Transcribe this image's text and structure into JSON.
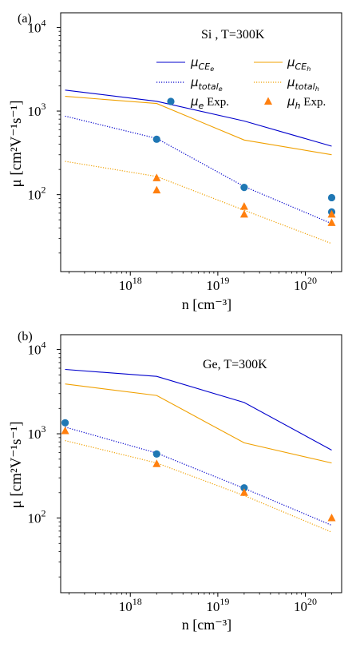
{
  "chart_data": [
    {
      "type": "line",
      "panel_label": "(a)",
      "annotation": "Si , T=300K",
      "xlabel": "n [cm⁻³]",
      "ylabel": "μ [cm²V⁻¹s⁻¹]",
      "x_scale": "log",
      "y_scale": "log",
      "xlim": [
        1.6e+17,
        2.6e+20
      ],
      "ylim": [
        12,
        15000
      ],
      "x_ticks": [
        {
          "value": 1e+18,
          "base": "10",
          "exp": "18"
        },
        {
          "value": 1e+19,
          "base": "10",
          "exp": "19"
        },
        {
          "value": 1e+20,
          "base": "10",
          "exp": "20"
        }
      ],
      "y_ticks": [
        {
          "value": 100,
          "base": "10",
          "exp": "2"
        },
        {
          "value": 1000,
          "base": "10",
          "exp": "3"
        },
        {
          "value": 10000,
          "base": "10",
          "exp": "4"
        }
      ],
      "legend_position": "top-right",
      "series": [
        {
          "name": "μ_CEe",
          "kind": "line",
          "color": "#0000cc",
          "style": "solid",
          "x": [
            1.8e+17,
            2e+18,
            2e+19,
            2e+20
          ],
          "y": [
            1780,
            1310,
            760,
            380
          ]
        },
        {
          "name": "μ_CEh",
          "kind": "line",
          "color": "#f0a000",
          "style": "solid",
          "x": [
            1.8e+17,
            2e+18,
            2e+19,
            2e+20
          ],
          "y": [
            1500,
            1230,
            450,
            300
          ]
        },
        {
          "name": "μ_totale",
          "kind": "line",
          "color": "#0000cc",
          "style": "dotted",
          "x": [
            1.8e+17,
            2e+18,
            2e+19,
            2e+20
          ],
          "y": [
            870,
            470,
            125,
            45
          ]
        },
        {
          "name": "μ_totalh",
          "kind": "line",
          "color": "#f0a000",
          "style": "dotted",
          "x": [
            1.8e+17,
            2e+18,
            2e+19,
            2e+20
          ],
          "y": [
            250,
            165,
            65,
            26
          ]
        },
        {
          "name": "μe Exp.",
          "kind": "marker",
          "marker": "circle",
          "color": "#1f77b4",
          "x": [
            2e+18,
            2e+19,
            2e+20,
            2e+20
          ],
          "y": [
            460,
            122,
            92,
            62
          ]
        },
        {
          "name": "μh Exp.",
          "kind": "marker",
          "marker": "triangle",
          "color": "#ff7f0e",
          "x": [
            2e+18,
            2e+18,
            2e+19,
            2e+19,
            2e+20,
            2e+20
          ],
          "y": [
            158,
            113,
            72,
            58,
            58,
            46
          ]
        }
      ]
    },
    {
      "type": "line",
      "panel_label": "(b)",
      "annotation": "Ge, T=300K",
      "xlabel": "n [cm⁻³]",
      "ylabel": "μ [cm²V⁻¹s⁻¹]",
      "x_scale": "log",
      "y_scale": "log",
      "xlim": [
        1.6e+17,
        2.6e+20
      ],
      "ylim": [
        13,
        15000
      ],
      "x_ticks": [
        {
          "value": 1e+18,
          "base": "10",
          "exp": "18"
        },
        {
          "value": 1e+19,
          "base": "10",
          "exp": "19"
        },
        {
          "value": 1e+20,
          "base": "10",
          "exp": "20"
        }
      ],
      "y_ticks": [
        {
          "value": 100,
          "base": "10",
          "exp": "2"
        },
        {
          "value": 1000,
          "base": "10",
          "exp": "3"
        },
        {
          "value": 10000,
          "base": "10",
          "exp": "4"
        }
      ],
      "series": [
        {
          "name": "μ_CEe",
          "kind": "line",
          "color": "#0000cc",
          "style": "solid",
          "x": [
            1.8e+17,
            2e+18,
            2e+19,
            2e+20
          ],
          "y": [
            5800,
            4800,
            2350,
            640
          ]
        },
        {
          "name": "μ_CEh",
          "kind": "line",
          "color": "#f0a000",
          "style": "solid",
          "x": [
            1.8e+17,
            2e+18,
            2e+19,
            2e+20
          ],
          "y": [
            3900,
            2850,
            780,
            450
          ]
        },
        {
          "name": "μ_totale",
          "kind": "line",
          "color": "#0000cc",
          "style": "dotted",
          "x": [
            1.8e+17,
            2e+18,
            2e+19,
            2e+20
          ],
          "y": [
            1200,
            590,
            225,
            82
          ]
        },
        {
          "name": "μ_totalh",
          "kind": "line",
          "color": "#f0a000",
          "style": "dotted",
          "x": [
            1.8e+17,
            2e+18,
            2e+19,
            2e+20
          ],
          "y": [
            830,
            450,
            185,
            68
          ]
        },
        {
          "name": "μe Exp.",
          "kind": "marker",
          "marker": "circle",
          "color": "#1f77b4",
          "x": [
            1.8e+17,
            2e+18,
            2e+19
          ],
          "y": [
            1350,
            575,
            228
          ]
        },
        {
          "name": "μh Exp.",
          "kind": "marker",
          "marker": "triangle",
          "color": "#ff7f0e",
          "x": [
            1.8e+17,
            2e+18,
            2e+19,
            2e+20
          ],
          "y": [
            1080,
            440,
            200,
            100
          ]
        }
      ]
    }
  ],
  "legend": [
    {
      "sym": "μ",
      "sub": "CE",
      "subsub": "e",
      "suffix": "",
      "series": 0
    },
    {
      "sym": "μ",
      "sub": "CE",
      "subsub": "h",
      "suffix": "",
      "series": 1
    },
    {
      "sym": "μ",
      "sub": "total",
      "subsub": "e",
      "suffix": "",
      "series": 2
    },
    {
      "sym": "μ",
      "sub": "total",
      "subsub": "h",
      "suffix": "",
      "series": 3
    },
    {
      "sym": "μ",
      "sub": "e",
      "subsub": "",
      "suffix": " Exp.",
      "series": 4
    },
    {
      "sym": "μ",
      "sub": "h",
      "subsub": "",
      "suffix": " Exp.",
      "series": 5
    }
  ]
}
